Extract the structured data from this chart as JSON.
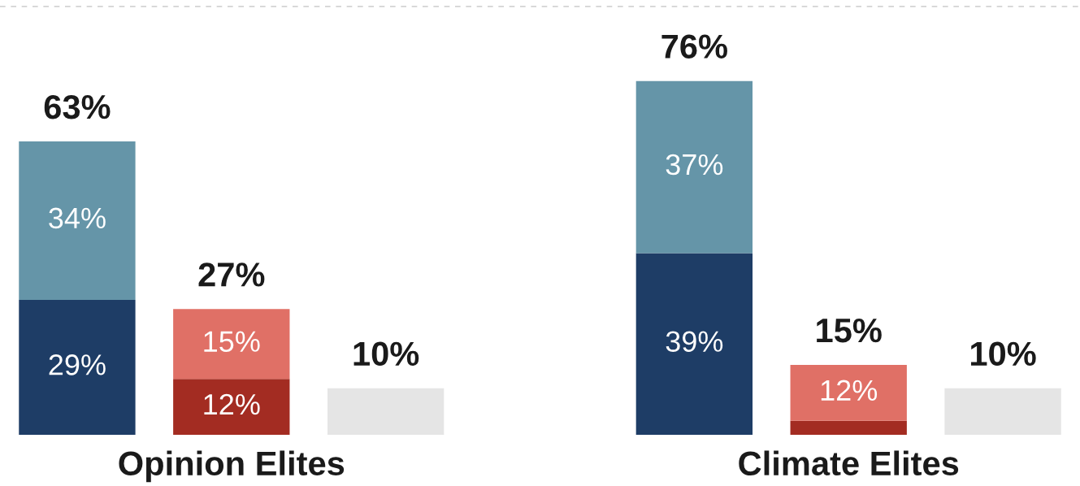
{
  "chart_data": {
    "type": "bar",
    "stacked": true,
    "categories": [
      null,
      "Opinion Elites",
      null,
      null,
      null,
      "Climate Elites",
      null
    ],
    "series": [
      {
        "color": "#1e3d66",
        "values": [
          29,
          null,
          null,
          null,
          39,
          null,
          null
        ],
        "value_labels": [
          "29%",
          null,
          null,
          null,
          "39%",
          null,
          null
        ]
      },
      {
        "color": "#6595a8",
        "values": [
          34,
          null,
          null,
          null,
          37,
          null,
          null
        ],
        "value_labels": [
          "34%",
          null,
          null,
          null,
          "37%",
          null,
          null
        ]
      },
      {
        "color": "#a32c22",
        "values": [
          null,
          12,
          null,
          null,
          null,
          3,
          null
        ],
        "value_labels": [
          null,
          "12%",
          null,
          null,
          null,
          null,
          null
        ]
      },
      {
        "color": "#e07066",
        "values": [
          null,
          15,
          null,
          null,
          null,
          12,
          null
        ],
        "value_labels": [
          null,
          "15%",
          null,
          null,
          null,
          "12%",
          null
        ]
      },
      {
        "color": "#e5e5e5",
        "values": [
          null,
          null,
          10,
          null,
          null,
          null,
          10
        ]
      }
    ],
    "totals": [
      "63%",
      "27%",
      "10%",
      null,
      "76%",
      "15%",
      "10%"
    ],
    "ref_lines": [
      {
        "axis": "y",
        "value": 92,
        "color": "#cccccc",
        "line_style": "dashed"
      }
    ],
    "tick_labels": "x"
  }
}
